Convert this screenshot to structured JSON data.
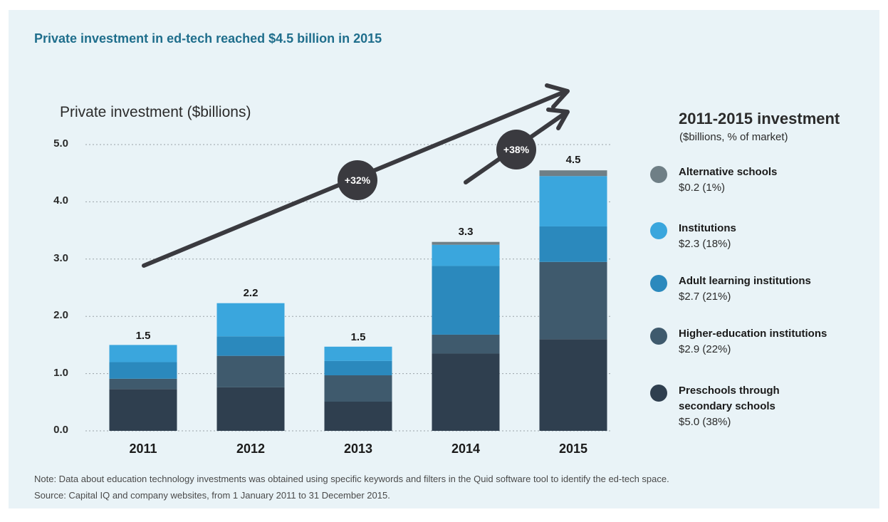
{
  "title": "Private investment in ed-tech reached $4.5 billion in 2015",
  "chart_data": {
    "type": "bar",
    "stacked": true,
    "ylabel": "Private investment ($billions)",
    "ylim": [
      0,
      5
    ],
    "yticks": [
      "0.0",
      "1.0",
      "2.0",
      "3.0",
      "4.0",
      "5.0"
    ],
    "ytick_values": [
      0,
      1,
      2,
      3,
      4,
      5
    ],
    "grid": "horizontal dotted",
    "categories": [
      "2011",
      "2012",
      "2013",
      "2014",
      "2015"
    ],
    "totals": [
      "1.5",
      "2.2",
      "1.5",
      "3.3",
      "4.5"
    ],
    "series": [
      {
        "name": "Preschools through secondary schools",
        "color": "#2f3f4f",
        "values": [
          0.73,
          0.76,
          0.51,
          1.35,
          1.6
        ]
      },
      {
        "name": "Higher-education institutions",
        "color": "#3f5a6d",
        "values": [
          0.18,
          0.55,
          0.46,
          0.33,
          1.35
        ]
      },
      {
        "name": "Adult learning institutions",
        "color": "#2b89bd",
        "values": [
          0.29,
          0.34,
          0.25,
          1.2,
          0.62
        ]
      },
      {
        "name": "Institutions",
        "color": "#3aa6dd",
        "values": [
          0.3,
          0.58,
          0.25,
          0.37,
          0.88
        ]
      },
      {
        "name": "Alternative schools",
        "color": "#6f7f86",
        "values": [
          0.0,
          0.0,
          0.0,
          0.05,
          0.1
        ]
      }
    ],
    "annotations": [
      {
        "text": "+32%",
        "label": "growth 2011-2015"
      },
      {
        "text": "+38%",
        "label": "growth 2014-2015"
      }
    ]
  },
  "legend": {
    "title": "2011-2015 investment",
    "subtitle": "($billions, % of market)",
    "items": [
      {
        "name": "Alternative schools",
        "value": "$0.2 (1%)",
        "color": "#6f7f86"
      },
      {
        "name": "Institutions",
        "value": "$2.3 (18%)",
        "color": "#3aa6dd"
      },
      {
        "name": "Adult learning institutions",
        "value": "$2.7 (21%)",
        "color": "#2b89bd"
      },
      {
        "name": "Higher-education institutions",
        "value": "$2.9 (22%)",
        "color": "#3f5a6d"
      },
      {
        "name": "Preschools through",
        "name2": "secondary schools",
        "value": "$5.0 (38%)",
        "color": "#2f3f4f"
      }
    ]
  },
  "notes": {
    "note": "Note: Data about education technology investments was obtained using specific keywords and filters in the Quid software tool to identify the ed-tech space.",
    "source": "Source: Capital IQ and company websites, from 1 January 2011 to 31 December 2015."
  }
}
